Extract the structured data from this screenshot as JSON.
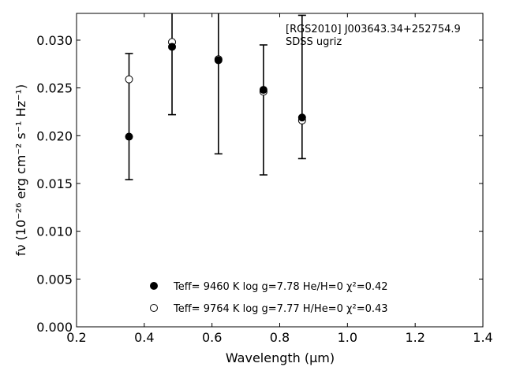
{
  "chart_data": {
    "type": "scatter",
    "annotations": [
      "[RGS2010] J003643.34+252754.9",
      "SDSS ugriz"
    ],
    "xlabel": "Wavelength (μm)",
    "ylabel": "fν (10⁻²⁶ erg cm⁻² s⁻¹ Hz⁻¹)",
    "xlim": [
      0.2,
      1.4
    ],
    "ylim": [
      0.0,
      0.0328
    ],
    "xticks": [
      0.2,
      0.4,
      0.6,
      0.8,
      1.0,
      1.2,
      1.4
    ],
    "xtick_labels": [
      "0.2",
      "0.4",
      "0.6",
      "0.8",
      "1.0",
      "1.2",
      "1.4"
    ],
    "yticks": [
      0.0,
      0.005,
      0.01,
      0.015,
      0.02,
      0.025,
      0.03
    ],
    "ytick_labels": [
      "0.000",
      "0.005",
      "0.010",
      "0.015",
      "0.020",
      "0.025",
      "0.030"
    ],
    "grid": false,
    "legend_position": "bottom-center",
    "observed": {
      "x": [
        0.355,
        0.482,
        0.619,
        0.752,
        0.866
      ],
      "y": [
        0.0199,
        0.0293,
        0.0279,
        0.0248,
        0.0219
      ],
      "err_low": [
        0.0154,
        0.0222,
        0.0181,
        0.0159,
        0.0176
      ],
      "err_high": [
        0.0286,
        0.0335,
        0.0335,
        0.0295,
        0.0326
      ]
    },
    "series": [
      {
        "name": "Teff= 9460 K log g=7.78 He/H=0 χ²=0.42",
        "marker": "filled-circle",
        "color": "#000000",
        "x": [
          0.355,
          0.482,
          0.619,
          0.752,
          0.866
        ],
        "y": [
          0.0199,
          0.0293,
          0.0279,
          0.0248,
          0.0219
        ]
      },
      {
        "name": "Teff= 9764 K log g=7.77 H/He=0 χ²=0.43",
        "marker": "open-circle",
        "color": "#000000",
        "x": [
          0.355,
          0.482,
          0.619,
          0.752,
          0.866
        ],
        "y": [
          0.0259,
          0.0298,
          0.028,
          0.0246,
          0.0216
        ]
      }
    ]
  }
}
